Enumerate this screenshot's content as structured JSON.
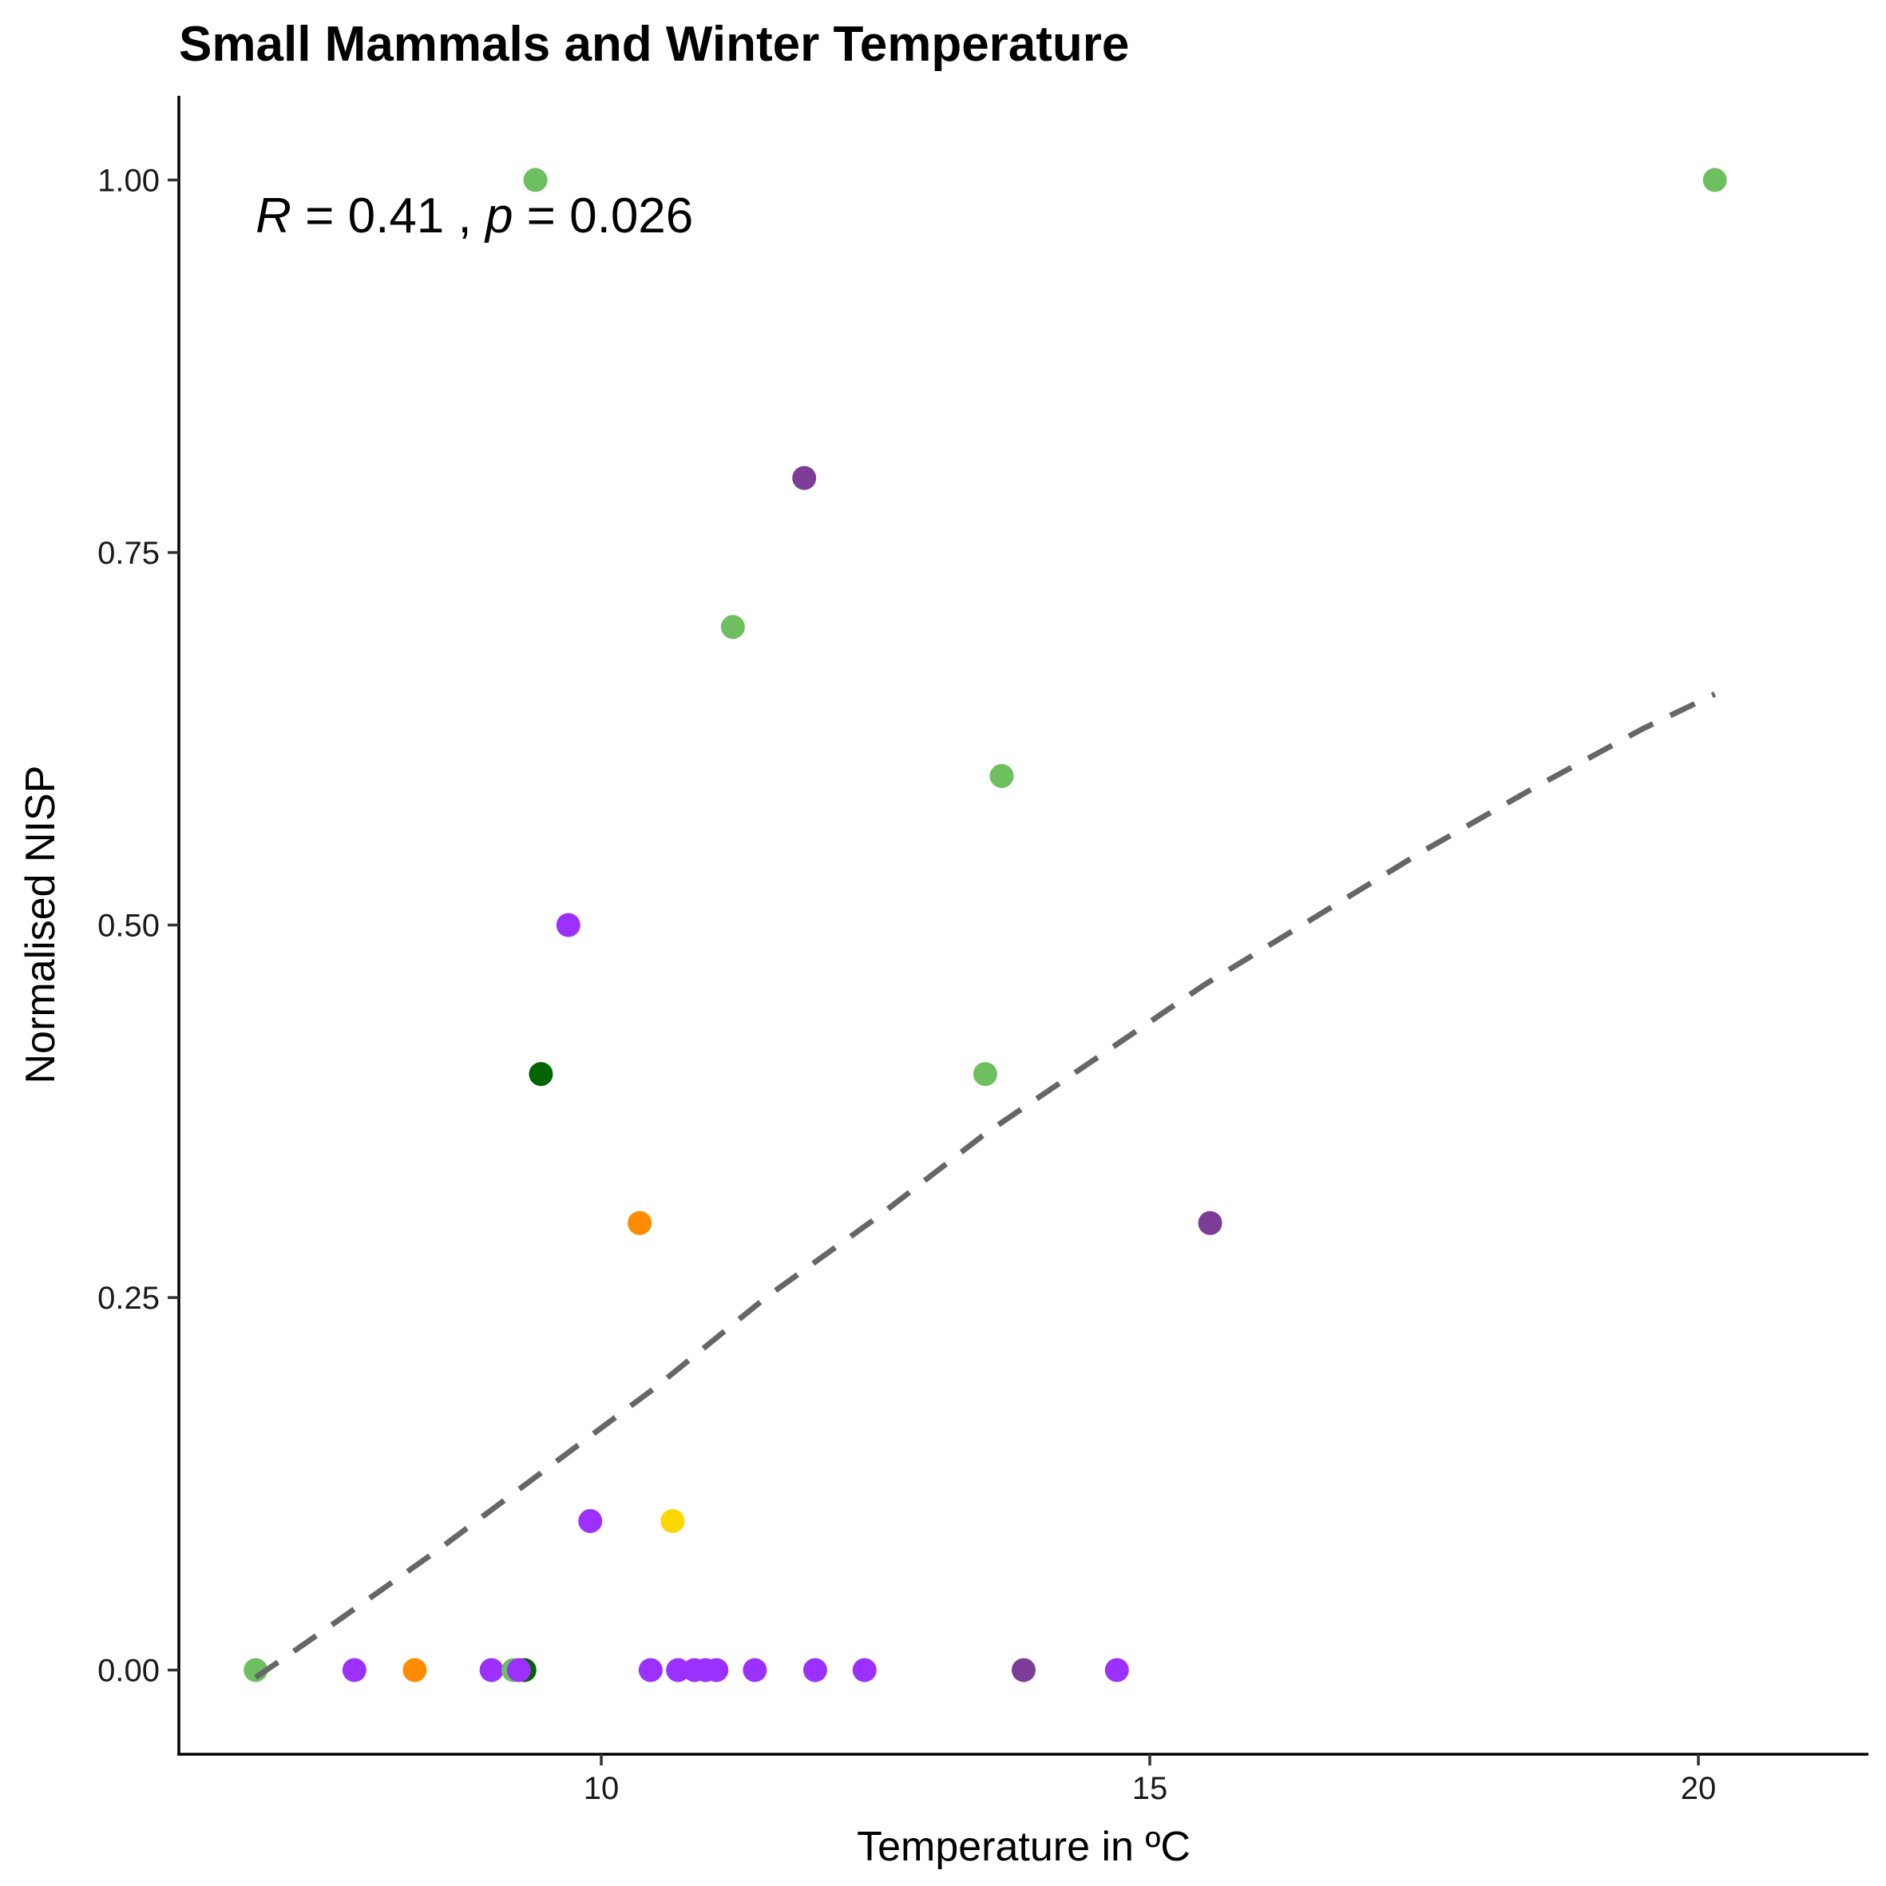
{
  "chart_data": {
    "type": "scatter",
    "title": "Small Mammals and Winter Temperature",
    "xlabel": "Temperature in ºC",
    "ylabel": "Normalised NISP",
    "xlim": [
      6.15,
      21.55
    ],
    "ylim": [
      -0.0565,
      1.0565
    ],
    "x_ticks": [
      10,
      15,
      20
    ],
    "x_tick_labels": [
      "10",
      "15",
      "20"
    ],
    "y_ticks": [
      0,
      0.25,
      0.5,
      0.75,
      1
    ],
    "y_tick_labels": [
      "0.00",
      "0.25",
      "0.50",
      "0.75",
      "1.00"
    ],
    "grid": false,
    "annotation": {
      "r_symbol": "R",
      "r_text": " = 0.41 , ",
      "p_symbol": "p",
      "p_text": " = 0.026",
      "x": 6.85,
      "y": 0.965
    },
    "trend_line": {
      "style": "dashed",
      "color": "#666666",
      "x": [
        6.85,
        7.5,
        8.5,
        9.5,
        10.5,
        11.5,
        12.5,
        13.5,
        14.5,
        15.5,
        16.5,
        17.5,
        18.5,
        19.5,
        20.15
      ],
      "y": [
        -0.005,
        0.028,
        0.08,
        0.135,
        0.19,
        0.25,
        0.303,
        0.36,
        0.41,
        0.46,
        0.505,
        0.55,
        0.592,
        0.632,
        0.655
      ]
    },
    "colors": {
      "light_green": "#6dbf5f",
      "dark_green": "#006400",
      "violet": "#9b30ff",
      "dark_purple": "#7d3c98",
      "orange": "#ff8c00",
      "gold": "#ffd700"
    },
    "points": [
      {
        "x": 9.4,
        "y": 1.0,
        "color": "#6dbf5f"
      },
      {
        "x": 20.15,
        "y": 1.0,
        "color": "#6dbf5f"
      },
      {
        "x": 11.85,
        "y": 0.8,
        "color": "#7d3c98"
      },
      {
        "x": 11.2,
        "y": 0.7,
        "color": "#6dbf5f"
      },
      {
        "x": 13.65,
        "y": 0.6,
        "color": "#6dbf5f"
      },
      {
        "x": 9.7,
        "y": 0.5,
        "color": "#9b30ff"
      },
      {
        "x": 9.45,
        "y": 0.4,
        "color": "#006400"
      },
      {
        "x": 13.5,
        "y": 0.4,
        "color": "#6dbf5f"
      },
      {
        "x": 10.35,
        "y": 0.3,
        "color": "#ff8c00"
      },
      {
        "x": 15.55,
        "y": 0.3,
        "color": "#7d3c98"
      },
      {
        "x": 9.9,
        "y": 0.1,
        "color": "#9b30ff"
      },
      {
        "x": 10.65,
        "y": 0.1,
        "color": "#ffd700"
      },
      {
        "x": 6.85,
        "y": 0.0,
        "color": "#6dbf5f"
      },
      {
        "x": 7.75,
        "y": 0.0,
        "color": "#9b30ff"
      },
      {
        "x": 8.3,
        "y": 0.0,
        "color": "#ff8c00"
      },
      {
        "x": 9.0,
        "y": 0.0,
        "color": "#9b30ff"
      },
      {
        "x": 9.2,
        "y": 0.0,
        "color": "#6dbf5f"
      },
      {
        "x": 9.3,
        "y": 0.0,
        "color": "#006400"
      },
      {
        "x": 9.25,
        "y": 0.0,
        "color": "#9b30ff"
      },
      {
        "x": 10.45,
        "y": 0.0,
        "color": "#9b30ff"
      },
      {
        "x": 10.7,
        "y": 0.0,
        "color": "#9b30ff"
      },
      {
        "x": 10.85,
        "y": 0.0,
        "color": "#9b30ff"
      },
      {
        "x": 10.95,
        "y": 0.0,
        "color": "#9b30ff"
      },
      {
        "x": 11.05,
        "y": 0.0,
        "color": "#9b30ff"
      },
      {
        "x": 11.4,
        "y": 0.0,
        "color": "#9b30ff"
      },
      {
        "x": 11.95,
        "y": 0.0,
        "color": "#9b30ff"
      },
      {
        "x": 12.4,
        "y": 0.0,
        "color": "#9b30ff"
      },
      {
        "x": 13.85,
        "y": 0.0,
        "color": "#7d3c98"
      },
      {
        "x": 14.7,
        "y": 0.0,
        "color": "#9b30ff"
      }
    ]
  }
}
